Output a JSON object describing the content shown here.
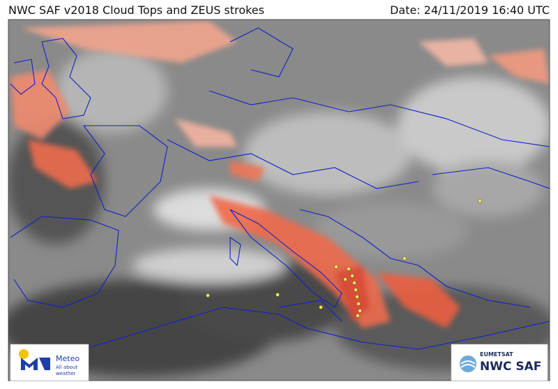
{
  "header": {
    "title": "NWC SAF v2018 Cloud Tops and ZEUS strokes",
    "date": "Date: 24/11/2019 16:40 UTC"
  },
  "logos": {
    "meteo": {
      "name": "Meteo",
      "tagline": [
        "All about",
        "weather"
      ]
    },
    "nwcsaf": {
      "org": "EUMETSAT",
      "name": "NWC SAF"
    }
  }
}
